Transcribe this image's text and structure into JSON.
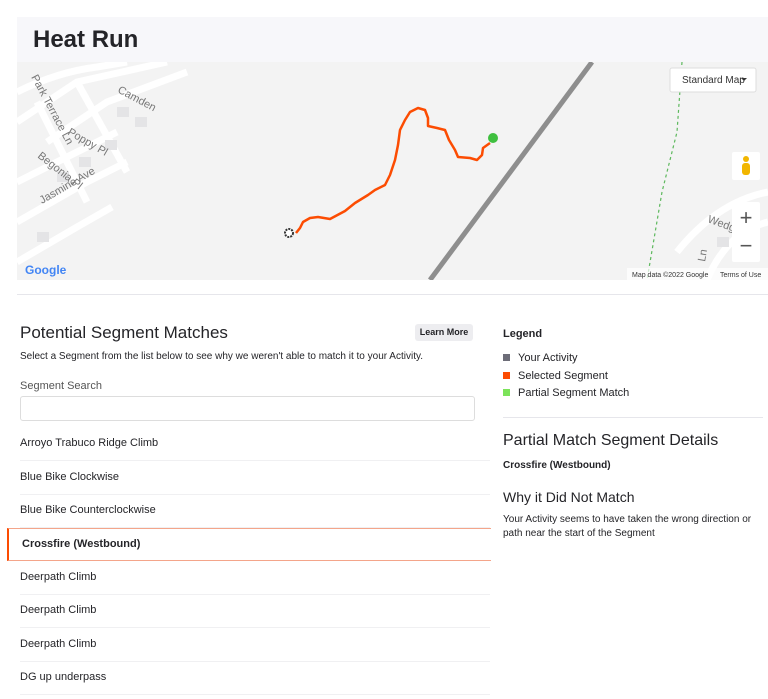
{
  "header": {
    "title": "Heat Run"
  },
  "map": {
    "labels": [
      "Park Terrace Ln",
      "Camden",
      "Poppy Pl",
      "Begonia Pl",
      "Jasmine Ave",
      "Wedge",
      "Ln"
    ],
    "map_type": "Standard Map",
    "zoom_in": "+",
    "zoom_out": "−",
    "logo": "Google",
    "attribution": "Map data ©2022 Google",
    "terms": "Terms of Use"
  },
  "matches": {
    "title": "Potential Segment Matches",
    "button": "Learn More",
    "instructions": "Select a Segment from the list below to see why we weren't able to match it to your Activity.",
    "search_label": "Segment Search",
    "segments": [
      "Arroyo Trabuco Ridge Climb",
      "Blue Bike Clockwise",
      "Blue Bike Counterclockwise",
      "Crossfire (Westbound)",
      "Deerpath Climb",
      "Deerpath Climb",
      "Deerpath Climb",
      "DG up underpass"
    ]
  },
  "legend": {
    "title": "Legend",
    "items": [
      "Your Activity",
      "Selected Segment",
      "Partial Segment Match"
    ]
  },
  "details": {
    "title": "Partial Match Segment Details",
    "segment": "Crossfire (Westbound)",
    "reason_title": "Why it Did Not Match",
    "reason": "Your Activity seems to have taken the wrong direction or path near the start of the Segment"
  }
}
